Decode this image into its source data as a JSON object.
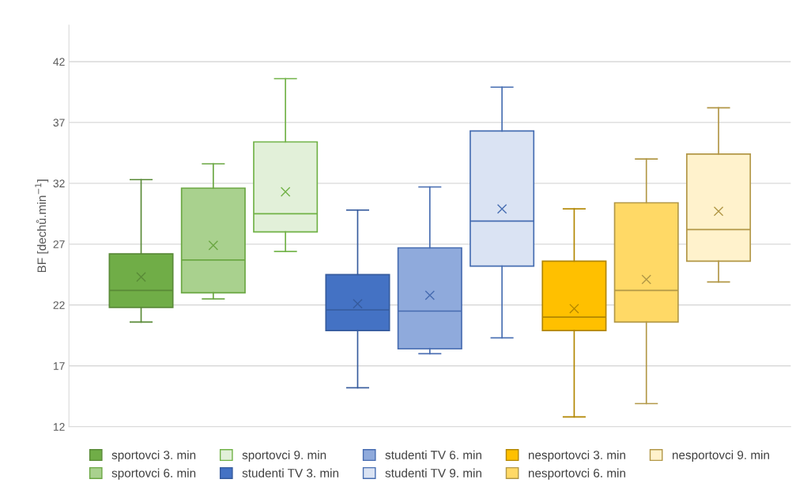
{
  "chart_data": {
    "type": "box",
    "ylabel": "BF [dechů.min$^{−1}$]",
    "categories": [
      null
    ],
    "ylim": [
      12,
      45
    ],
    "yticks": [
      12,
      17,
      22,
      27,
      32,
      37,
      42
    ],
    "grid": "y",
    "legend": "bottom",
    "marker": "cross",
    "series": [
      {
        "name": "sportovci 3. min",
        "color": "#70ad47",
        "boxes": [
          {
            "low": 20.6,
            "q1": 21.8,
            "median": 23.2,
            "q3": 26.2,
            "high": 32.3,
            "mean": 24.3
          }
        ]
      },
      {
        "name": "sportovci 6. min",
        "color": "#a9d18e",
        "boxes": [
          {
            "low": 22.5,
            "q1": 23.0,
            "median": 25.7,
            "q3": 31.6,
            "high": 33.6,
            "mean": 26.9
          }
        ]
      },
      {
        "name": "sportovci 9. min",
        "color": "#e2f0d9",
        "boxes": [
          {
            "low": 26.4,
            "q1": 28.0,
            "median": 29.5,
            "q3": 35.4,
            "high": 40.6,
            "mean": 31.3
          }
        ]
      },
      {
        "name": "studenti TV 3. min",
        "color": "#4472c4",
        "boxes": [
          {
            "low": 15.2,
            "q1": 19.9,
            "median": 21.6,
            "q3": 24.5,
            "high": 29.8,
            "mean": 22.1
          }
        ]
      },
      {
        "name": "studenti TV 6. min",
        "color": "#8faadc",
        "boxes": [
          {
            "low": 18.0,
            "q1": 18.4,
            "median": 21.5,
            "q3": 26.7,
            "high": 31.7,
            "mean": 22.8
          }
        ]
      },
      {
        "name": "studenti TV 9. min",
        "color": "#dae3f3",
        "boxes": [
          {
            "low": 19.3,
            "q1": 25.2,
            "median": 28.9,
            "q3": 36.3,
            "high": 39.9,
            "mean": 29.9
          }
        ]
      },
      {
        "name": "nesportovci 3. min",
        "color": "#ffc000",
        "boxes": [
          {
            "low": 12.8,
            "q1": 19.9,
            "median": 21.0,
            "q3": 25.6,
            "high": 29.9,
            "mean": 21.7
          }
        ]
      },
      {
        "name": "nesportovci 6. min",
        "color": "#ffd966",
        "boxes": [
          {
            "low": 13.9,
            "q1": 20.6,
            "median": 23.2,
            "q3": 30.4,
            "high": 34.0,
            "mean": 24.1
          }
        ]
      },
      {
        "name": "nesportovci 9. min",
        "color": "#fff2cc",
        "boxes": [
          {
            "low": 23.9,
            "q1": 25.6,
            "median": 28.2,
            "q3": 34.4,
            "high": 38.2,
            "mean": 29.7
          }
        ]
      }
    ]
  }
}
